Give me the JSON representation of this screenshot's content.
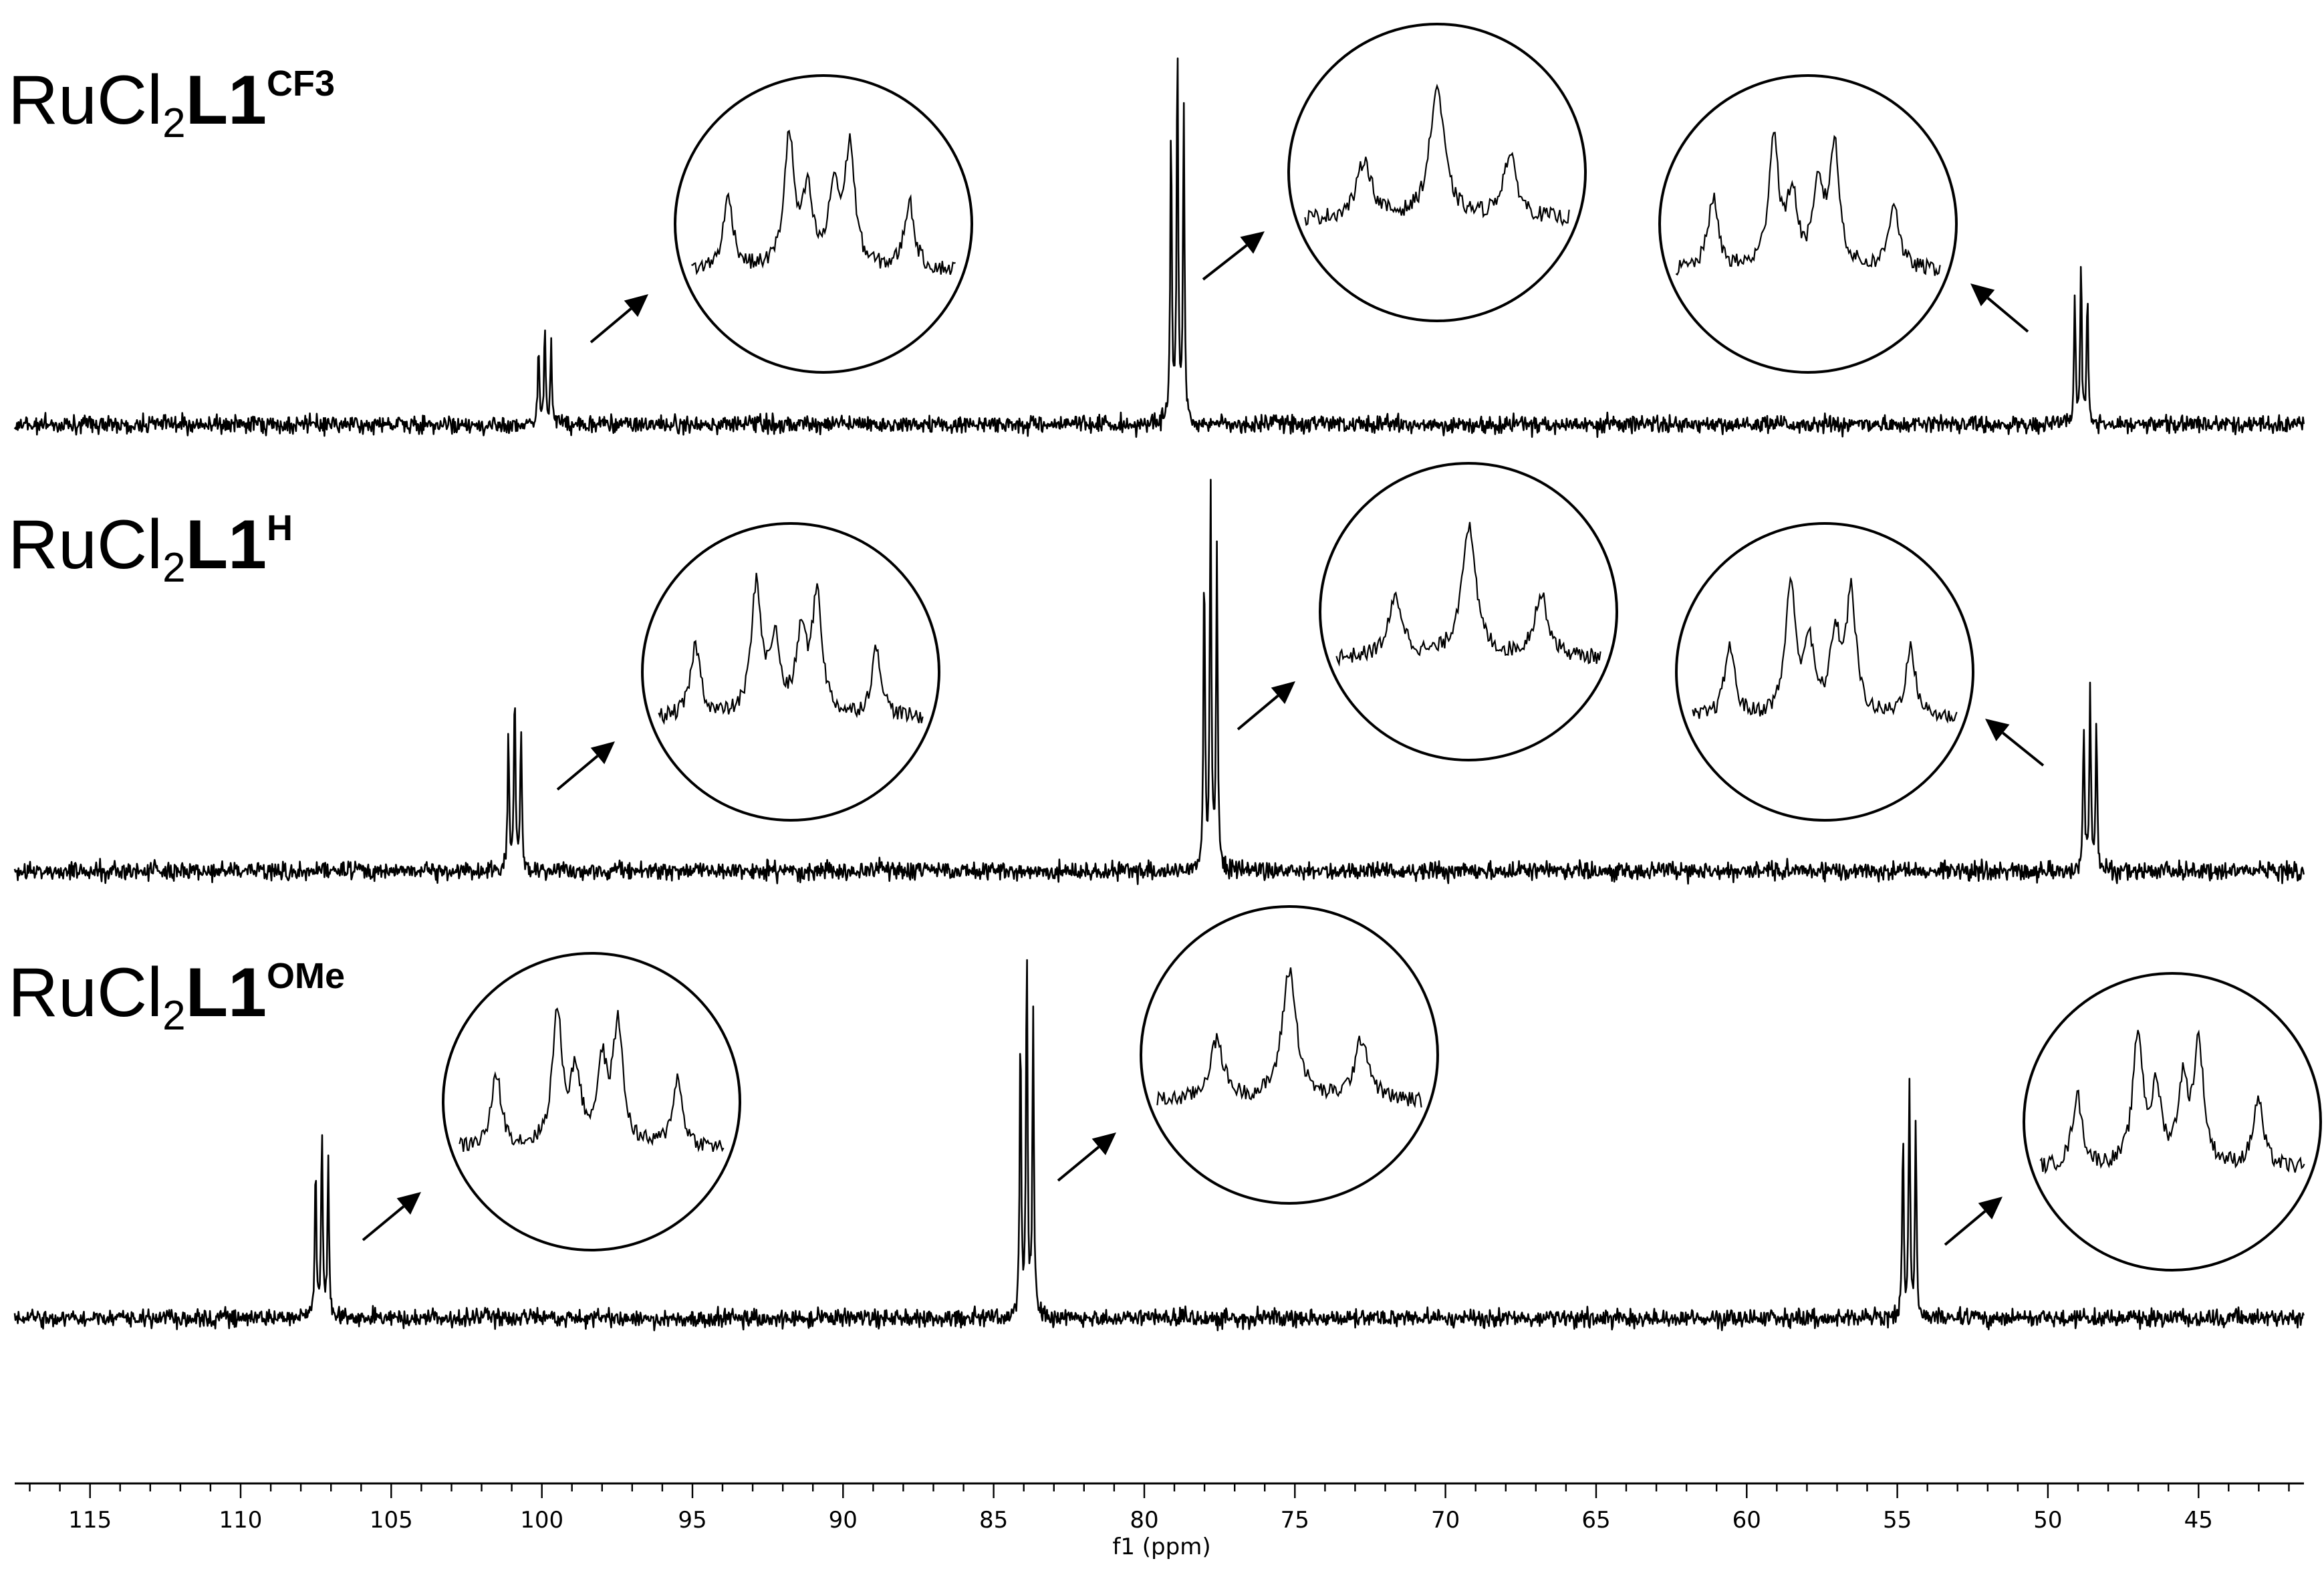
{
  "chart_data": {
    "type": "line",
    "title": "",
    "xlabel": "f1 (ppm)",
    "ylabel": "",
    "x_reversed": true,
    "xlim": [
      117.5,
      41.5
    ],
    "x_ticks": [
      115,
      110,
      105,
      100,
      95,
      90,
      85,
      80,
      75,
      70,
      65,
      60,
      55,
      50,
      45
    ],
    "x_tick_labels": [
      "115",
      "110",
      "105",
      "100",
      "95",
      "90",
      "85",
      "80",
      "75",
      "70",
      "65",
      "60",
      "55",
      "50",
      "45"
    ],
    "grid": false,
    "series": [
      {
        "name": "RuCl2L1CF3",
        "label_parts": {
          "prefix": "RuCl",
          "sub": "2",
          "bold": "L1",
          "sup": "CF3"
        },
        "multiplets": [
          {
            "shift_ppm": 99.9,
            "pattern": "triplet",
            "relative_height": 0.27
          },
          {
            "shift_ppm": 78.9,
            "pattern": "triplet",
            "relative_height": 1.0
          },
          {
            "shift_ppm": 48.9,
            "pattern": "triplet",
            "relative_height": 0.42
          }
        ],
        "zoom_insets": [
          {
            "shift_ppm": 99.9,
            "peak_pattern": "multiplet, 4 main lines"
          },
          {
            "shift_ppm": 78.9,
            "peak_pattern": "triplet"
          },
          {
            "shift_ppm": 48.9,
            "peak_pattern": "multiplet, 4 main lines"
          }
        ]
      },
      {
        "name": "RuCl2L1H",
        "label_parts": {
          "prefix": "RuCl",
          "sub": "2",
          "bold": "L1",
          "sup": "H"
        },
        "multiplets": [
          {
            "shift_ppm": 100.9,
            "pattern": "triplet",
            "relative_height": 0.45
          },
          {
            "shift_ppm": 77.8,
            "pattern": "triplet",
            "relative_height": 1.0
          },
          {
            "shift_ppm": 48.6,
            "pattern": "triplet",
            "relative_height": 0.47
          }
        ],
        "zoom_insets": [
          {
            "shift_ppm": 100.9,
            "peak_pattern": "multiplet, 4 main lines"
          },
          {
            "shift_ppm": 77.8,
            "peak_pattern": "triplet"
          },
          {
            "shift_ppm": 48.6,
            "peak_pattern": "multiplet, 4 main lines"
          }
        ]
      },
      {
        "name": "RuCl2L1OMe",
        "label_parts": {
          "prefix": "RuCl",
          "sub": "2",
          "bold": "L1",
          "sup": "OMe"
        },
        "multiplets": [
          {
            "shift_ppm": 107.3,
            "pattern": "triplet",
            "relative_height": 0.52
          },
          {
            "shift_ppm": 83.9,
            "pattern": "triplet",
            "relative_height": 1.0
          },
          {
            "shift_ppm": 54.6,
            "pattern": "triplet",
            "relative_height": 0.64
          }
        ],
        "zoom_insets": [
          {
            "shift_ppm": 107.3,
            "peak_pattern": "multiplet, 4 main lines"
          },
          {
            "shift_ppm": 83.9,
            "peak_pattern": "triplet"
          },
          {
            "shift_ppm": 54.6,
            "peak_pattern": "multiplet, 4 main lines"
          }
        ]
      }
    ]
  }
}
